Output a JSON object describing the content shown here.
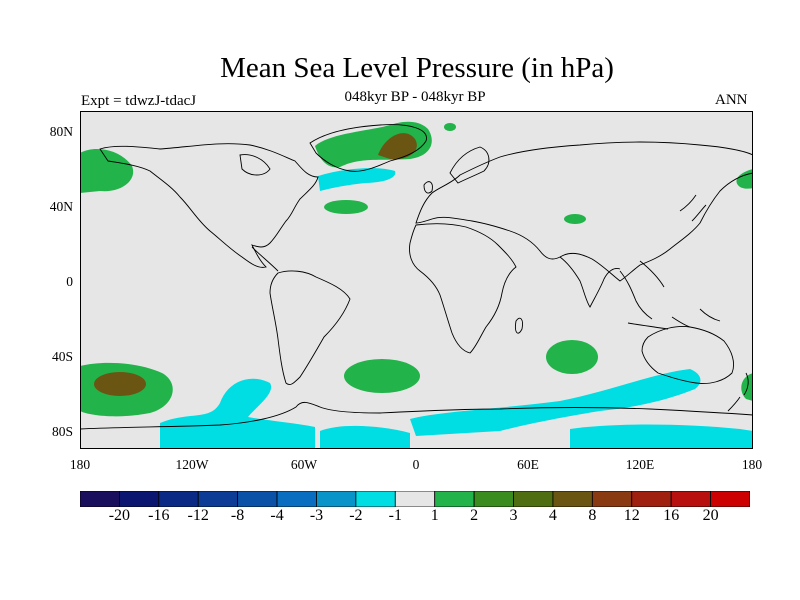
{
  "header": {
    "title": "Mean Sea Level Pressure (in hPa)",
    "subtitle": "048kyr BP - 048kyr BP",
    "experiment": "Expt = tdwzJ-tdacJ",
    "season": "ANN"
  },
  "map": {
    "projection": "cylindrical equidistant",
    "background_color": "#e6e6e6",
    "coastline_color": "#000000",
    "lat_ticks": [
      "80N",
      "40N",
      "0",
      "40S",
      "80S"
    ],
    "lon_ticks": [
      "180",
      "120W",
      "60W",
      "0",
      "60E",
      "120E",
      "180"
    ],
    "anomaly_regions": [
      {
        "region": "Alaska",
        "category": "1"
      },
      {
        "region": "Greenland",
        "category": "2"
      },
      {
        "region": "Greenland peak",
        "category": "4"
      },
      {
        "region": "North Atlantic",
        "category": "-2"
      },
      {
        "region": "Central North Atlantic",
        "category": "1"
      },
      {
        "region": "Caspian region",
        "category": "1"
      },
      {
        "region": "Kamchatka",
        "category": "1"
      },
      {
        "region": "South Pacific",
        "category": "1"
      },
      {
        "region": "South Pacific core",
        "category": "3"
      },
      {
        "region": "South Atlantic",
        "category": "1"
      },
      {
        "region": "South Indian Ocean",
        "category": "1"
      },
      {
        "region": "Southern Ocean",
        "category": "-2"
      }
    ]
  },
  "colorbar": {
    "labels": [
      "-20",
      "-16",
      "-12",
      "-8",
      "-4",
      "-3",
      "-2",
      "-1",
      "1",
      "2",
      "3",
      "4",
      "8",
      "12",
      "16",
      "20"
    ],
    "colors": [
      "#1a0f5c",
      "#0b1670",
      "#0b2a85",
      "#0c3c95",
      "#0a52a8",
      "#0a6ec0",
      "#0893c9",
      "#00dde3",
      "#e6e6e6",
      "#22b34a",
      "#3b8c1e",
      "#4f6e12",
      "#6b5512",
      "#8a3a10",
      "#a0200f",
      "#b80f0f",
      "#cc0000"
    ]
  }
}
